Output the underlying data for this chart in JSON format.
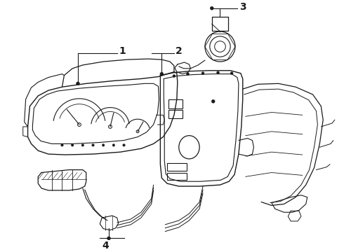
{
  "background_color": "#ffffff",
  "line_color": "#1a1a1a",
  "label_1": "1",
  "label_2": "2",
  "label_3": "3",
  "label_4": "4",
  "fig_width": 4.9,
  "fig_height": 3.6,
  "dpi": 100
}
